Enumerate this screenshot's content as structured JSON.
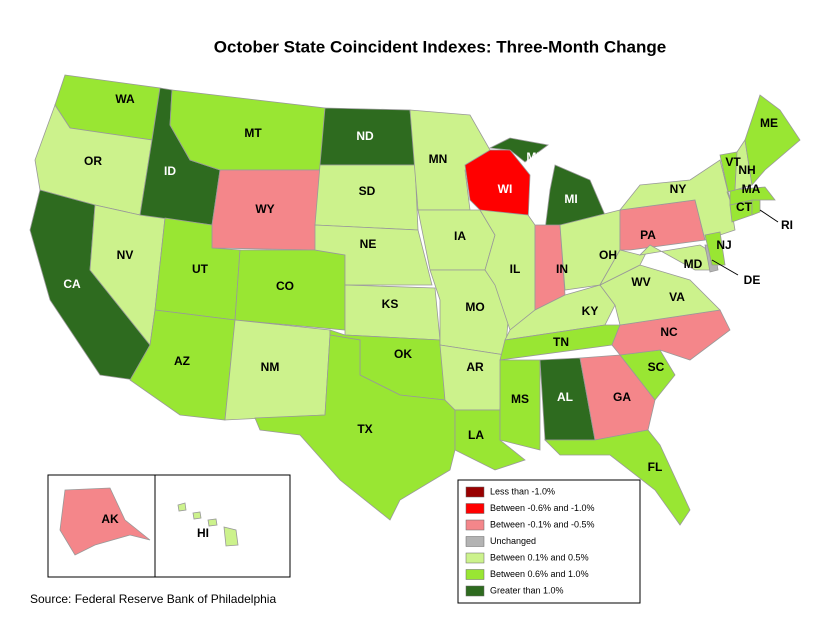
{
  "title": "October State Coincident Indexes: Three-Month Change",
  "source": "Source: Federal Reserve Bank of Philadelphia",
  "legend": [
    {
      "label": "Less than -1.0%",
      "color": "#990000"
    },
    {
      "label": "Between -0.6% and -1.0%",
      "color": "#ff0000"
    },
    {
      "label": "Between -0.1% and -0.5%",
      "color": "#f4868a"
    },
    {
      "label": "Unchanged",
      "color": "#b3b3b3"
    },
    {
      "label": "Between 0.1% and 0.5%",
      "color": "#ccf28c"
    },
    {
      "label": "Between 0.6% and 1.0%",
      "color": "#99e633"
    },
    {
      "label": "Greater than 1.0%",
      "color": "#2e6b1f"
    }
  ],
  "states": [
    {
      "label": "WA",
      "category": 5
    },
    {
      "label": "OR",
      "category": 4
    },
    {
      "label": "CA",
      "category": 6
    },
    {
      "label": "NV",
      "category": 4
    },
    {
      "label": "ID",
      "category": 6
    },
    {
      "label": "MT",
      "category": 5
    },
    {
      "label": "WY",
      "category": 2
    },
    {
      "label": "UT",
      "category": 5
    },
    {
      "label": "CO",
      "category": 5
    },
    {
      "label": "AZ",
      "category": 5
    },
    {
      "label": "NM",
      "category": 4
    },
    {
      "label": "ND",
      "category": 6
    },
    {
      "label": "SD",
      "category": 4
    },
    {
      "label": "NE",
      "category": 4
    },
    {
      "label": "KS",
      "category": 4
    },
    {
      "label": "OK",
      "category": 5
    },
    {
      "label": "TX",
      "category": 5
    },
    {
      "label": "MN",
      "category": 4
    },
    {
      "label": "IA",
      "category": 4
    },
    {
      "label": "MO",
      "category": 4
    },
    {
      "label": "AR",
      "category": 4
    },
    {
      "label": "LA",
      "category": 5
    },
    {
      "label": "WI",
      "category": 1
    },
    {
      "label": "MI",
      "category": 6
    },
    {
      "label": "IL",
      "category": 4
    },
    {
      "label": "IN",
      "category": 2
    },
    {
      "label": "OH",
      "category": 4
    },
    {
      "label": "KY",
      "category": 4
    },
    {
      "label": "TN",
      "category": 5
    },
    {
      "label": "MS",
      "category": 5
    },
    {
      "label": "AL",
      "category": 6
    },
    {
      "label": "GA",
      "category": 2
    },
    {
      "label": "FL",
      "category": 5
    },
    {
      "label": "SC",
      "category": 5
    },
    {
      "label": "NC",
      "category": 2
    },
    {
      "label": "VA",
      "category": 4
    },
    {
      "label": "WV",
      "category": 4
    },
    {
      "label": "PA",
      "category": 2
    },
    {
      "label": "NY",
      "category": 4
    },
    {
      "label": "MD",
      "category": 4
    },
    {
      "label": "DE",
      "category": 3
    },
    {
      "label": "NJ",
      "category": 5
    },
    {
      "label": "CT",
      "category": 5
    },
    {
      "label": "RI",
      "category": 5
    },
    {
      "label": "MA",
      "category": 5
    },
    {
      "label": "VT",
      "category": 5
    },
    {
      "label": "NH",
      "category": 4
    },
    {
      "label": "ME",
      "category": 5
    },
    {
      "label": "AK",
      "category": 2
    },
    {
      "label": "HI",
      "category": 4
    }
  ]
}
